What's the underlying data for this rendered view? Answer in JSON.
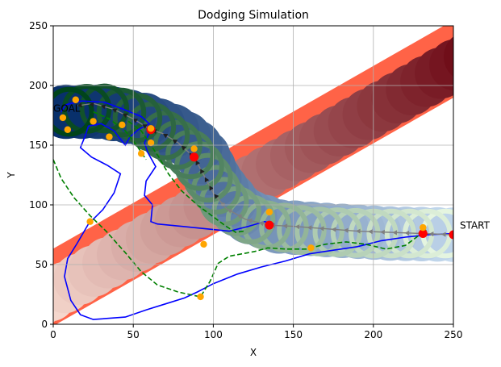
{
  "chart_data": {
    "type": "scatter",
    "title": "Dodging Simulation",
    "xlabel": "X",
    "ylabel": "Y",
    "xlim": [
      0,
      250
    ],
    "ylim": [
      0,
      250
    ],
    "xticks": [
      0,
      50,
      100,
      150,
      200,
      250
    ],
    "yticks": [
      0,
      50,
      100,
      150,
      200,
      250
    ],
    "grid": true,
    "annotations": [
      {
        "text": "START",
        "x": 252,
        "y": 78
      },
      {
        "text": "GOAL",
        "x": -2,
        "y": 176
      }
    ],
    "colors": {
      "band": "#ff6347",
      "band_fill_start": "#fee5d9",
      "band_fill_end": "#67000d",
      "ring_sweep_start": "#c6dbef",
      "ring_sweep_end": "#08306b",
      "green_sweep_start": "#e5f5e0",
      "green_sweep_end": "#00441b",
      "blue_path": "#0000ff",
      "green_dashed": "#008000",
      "waypoint": "#ffa500",
      "red_marker": "#ff0000",
      "arrow_path": "#7f7f7f",
      "black_path": "#000000"
    },
    "orange_points": [
      [
        6,
        173
      ],
      [
        9,
        163
      ],
      [
        14,
        188
      ],
      [
        25,
        170
      ],
      [
        35,
        157
      ],
      [
        43,
        167
      ],
      [
        55,
        143
      ],
      [
        61,
        164
      ],
      [
        61,
        152
      ],
      [
        88,
        147
      ],
      [
        23,
        86
      ],
      [
        94,
        67
      ],
      [
        92,
        23
      ],
      [
        135,
        94
      ],
      [
        161,
        64
      ],
      [
        231,
        81
      ]
    ],
    "red_points": [
      [
        61,
        163
      ],
      [
        88,
        140
      ],
      [
        135,
        83
      ],
      [
        231,
        76
      ],
      [
        250,
        75
      ]
    ],
    "arrow_path": [
      [
        250,
        75
      ],
      [
        230,
        76
      ],
      [
        210,
        77
      ],
      [
        190,
        78
      ],
      [
        170,
        80
      ],
      [
        150,
        82
      ],
      [
        135,
        83
      ],
      [
        120,
        88
      ],
      [
        108,
        97
      ],
      [
        100,
        110
      ],
      [
        94,
        125
      ],
      [
        88,
        140
      ],
      [
        78,
        152
      ],
      [
        68,
        160
      ],
      [
        61,
        163
      ],
      [
        50,
        172
      ],
      [
        38,
        180
      ],
      [
        25,
        185
      ],
      [
        15,
        183
      ]
    ],
    "blue_path": [
      [
        5,
        178
      ],
      [
        8,
        184
      ],
      [
        18,
        187
      ],
      [
        32,
        186
      ],
      [
        44,
        180
      ],
      [
        55,
        174
      ],
      [
        60,
        168
      ],
      [
        53,
        163
      ],
      [
        48,
        157
      ],
      [
        45,
        150
      ],
      [
        42,
        155
      ],
      [
        38,
        162
      ],
      [
        30,
        168
      ],
      [
        22,
        166
      ],
      [
        20,
        158
      ],
      [
        17,
        148
      ],
      [
        24,
        140
      ],
      [
        34,
        133
      ],
      [
        42,
        126
      ],
      [
        38,
        110
      ],
      [
        31,
        96
      ],
      [
        22,
        84
      ],
      [
        15,
        68
      ],
      [
        9,
        55
      ],
      [
        7,
        40
      ],
      [
        11,
        20
      ],
      [
        17,
        8
      ],
      [
        25,
        4
      ],
      [
        45,
        6
      ],
      [
        58,
        12
      ],
      [
        70,
        17
      ],
      [
        82,
        22
      ],
      [
        90,
        27
      ],
      [
        100,
        34
      ],
      [
        115,
        42
      ],
      [
        130,
        48
      ],
      [
        145,
        53
      ],
      [
        160,
        59
      ],
      [
        175,
        62
      ],
      [
        190,
        65
      ],
      [
        205,
        70
      ],
      [
        220,
        73
      ],
      [
        235,
        75
      ],
      [
        250,
        76
      ]
    ],
    "blue_path_2": [
      [
        52,
        170
      ],
      [
        58,
        166
      ],
      [
        60,
        160
      ],
      [
        57,
        152
      ],
      [
        59,
        144
      ],
      [
        64,
        132
      ],
      [
        58,
        120
      ],
      [
        57,
        108
      ],
      [
        62,
        100
      ],
      [
        61,
        86
      ],
      [
        65,
        84
      ],
      [
        80,
        82
      ],
      [
        95,
        80
      ],
      [
        110,
        78
      ],
      [
        122,
        82
      ],
      [
        132,
        86
      ],
      [
        138,
        84
      ]
    ],
    "green_dashed_path": [
      [
        0,
        138
      ],
      [
        5,
        122
      ],
      [
        13,
        106
      ],
      [
        23,
        91
      ],
      [
        33,
        78
      ],
      [
        45,
        60
      ],
      [
        55,
        44
      ],
      [
        65,
        33
      ],
      [
        78,
        27
      ],
      [
        92,
        23
      ],
      [
        98,
        36
      ],
      [
        103,
        51
      ],
      [
        110,
        57
      ],
      [
        118,
        59
      ],
      [
        126,
        61
      ],
      [
        134,
        64
      ],
      [
        145,
        63
      ],
      [
        158,
        63
      ],
      [
        170,
        67
      ],
      [
        183,
        69
      ],
      [
        195,
        67
      ],
      [
        208,
        63
      ],
      [
        220,
        66
      ],
      [
        228,
        74
      ],
      [
        233,
        79
      ]
    ],
    "green_dashed_path_2": [
      [
        47,
        170
      ],
      [
        55,
        162
      ],
      [
        60,
        152
      ],
      [
        66,
        140
      ],
      [
        72,
        126
      ],
      [
        80,
        112
      ],
      [
        90,
        100
      ],
      [
        100,
        90
      ],
      [
        108,
        82
      ],
      [
        114,
        77
      ],
      [
        119,
        78
      ]
    ],
    "green_dashed_path_3": [
      [
        25,
        178
      ],
      [
        35,
        172
      ],
      [
        45,
        162
      ],
      [
        52,
        150
      ],
      [
        58,
        138
      ]
    ]
  }
}
